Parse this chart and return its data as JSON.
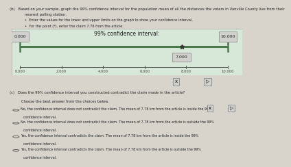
{
  "title": "99% confidence interval:",
  "lower_limit": 0.0,
  "upper_limit": 10.0,
  "claim_value": 7.78,
  "point_label": "7.000",
  "xticks": [
    0.0,
    2.0,
    4.0,
    6.0,
    8.0,
    10.0
  ],
  "xtick_labels": [
    "0.000",
    "2.000",
    "4.000",
    "6.000",
    "8.000",
    "10.000"
  ],
  "lower_box_label": "0.000",
  "upper_box_label": "10.000",
  "bar_line_color": "#4a7a4a",
  "ci_bg_color": "#d8e8d8",
  "outer_bg_color": "#d8d4cc",
  "box_bg_color": "#d0d0cc",
  "box_border_color": "#999999",
  "line_color": "#333333",
  "text_color": "#222222",
  "header_text": "(b)   Based on your sample, graph the 99% confidence interval for the population mean of all the distances the voters in Vanville County live from their nearest polling station.",
  "bullet1": "Enter the values for the lower and upper limits on the graph to show your confidence interval.",
  "bullet2": "For the point (*), enter the claim 7.78 from the article.",
  "section_c_q": "(c)   Does the 99% confidence interval you constructed contradict the claim made in the article?",
  "section_c_sub": "Choose the best answer from the choices below.",
  "choice1_line1": "No, the confidence interval does not contradict the claim. The mean of 7.78 km from the article is inside the 99%",
  "choice1_line2": "confidence interval.",
  "choice2_line1": "No, the confidence interval does not contradict the claim. The mean of 7.78 km from the article is outside the 99%",
  "choice2_line2": "confidence interval.",
  "choice3_line1": "Yes, the confidence interval contradicts the claim. The mean of 7.78 km from the article is inside the 99%",
  "choice3_line2": "confidence interval.",
  "choice4_line1": "Yes, the confidence interval contradicts the claim. The mean of 7.78 km from the article is outside the 99%",
  "choice4_line2": "confidence interval."
}
